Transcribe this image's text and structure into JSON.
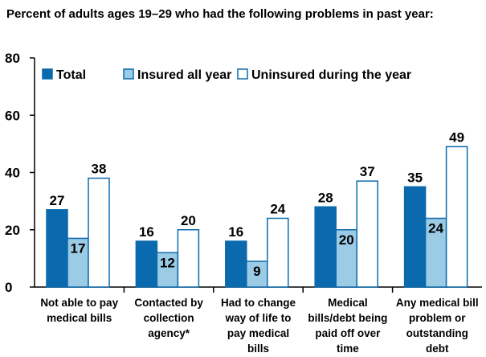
{
  "chart_data": {
    "type": "bar",
    "title": "Percent of adults ages 19–29 who had the following problems in past year:",
    "xlabel": "",
    "ylabel": "",
    "ylim": [
      0,
      80
    ],
    "yticks": [
      0,
      20,
      40,
      60,
      80
    ],
    "grid": false,
    "legend_position": "top",
    "categories": [
      [
        "Not able to pay",
        "medical bills"
      ],
      [
        "Contacted by",
        "collection",
        "agency*"
      ],
      [
        "Had to change",
        "way of life to",
        "pay medical",
        "bills"
      ],
      [
        "Medical",
        "bills/debt being",
        "paid off over",
        "time"
      ],
      [
        "Any medical bill",
        "problem or",
        "outstanding",
        "debt"
      ]
    ],
    "series": [
      {
        "name": "Total",
        "color": "#0b6aad",
        "values": [
          27,
          16,
          16,
          28,
          35
        ]
      },
      {
        "name": "Insured all year",
        "color": "#9ccbe6",
        "values": [
          17,
          12,
          9,
          20,
          24
        ]
      },
      {
        "name": "Uninsured during the year",
        "color": "#ffffff",
        "values": [
          38,
          20,
          24,
          37,
          49
        ]
      }
    ],
    "bar_edge_color": "#0b6aad"
  }
}
